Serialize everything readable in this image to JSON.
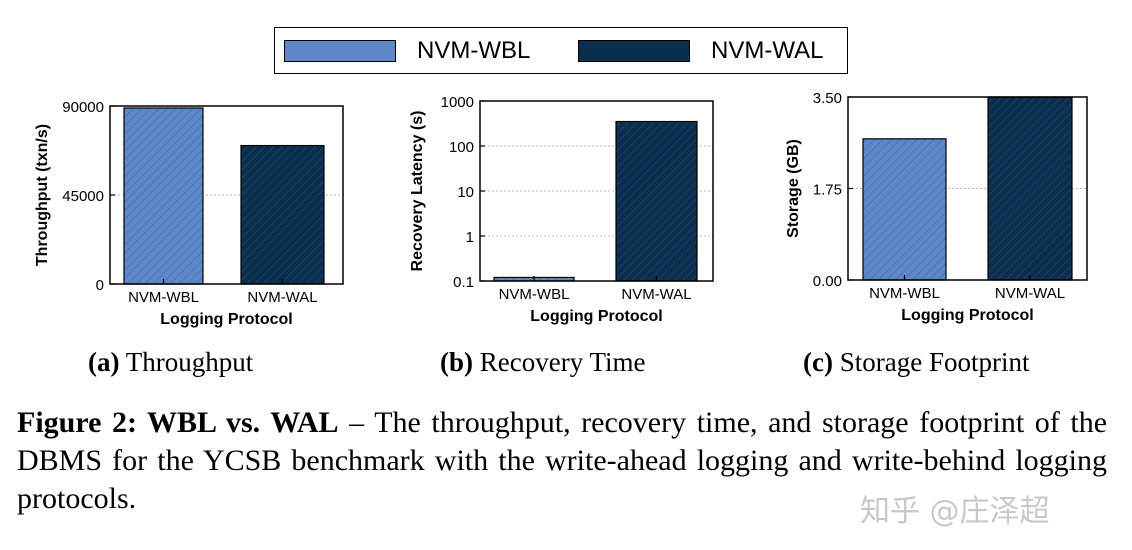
{
  "legend": {
    "items": [
      {
        "label": "NVM-WBL",
        "color": "#5f88c8"
      },
      {
        "label": "NVM-WAL",
        "color": "#0c2e4e"
      }
    ]
  },
  "chart_data": [
    {
      "type": "bar",
      "categories": [
        "NVM-WBL",
        "NVM-WAL"
      ],
      "values": [
        89000,
        70000
      ],
      "colors": [
        "#5f88c8",
        "#0c2e4e"
      ],
      "ylabel": "Throughput (txn/s)",
      "xlabel": "Logging Protocol",
      "yticks": [
        "0",
        "45000",
        "90000"
      ],
      "ytick_values": [
        0,
        45000,
        90000
      ],
      "ylim": [
        0,
        90000
      ],
      "scale": "linear",
      "grid": true
    },
    {
      "type": "bar",
      "categories": [
        "NVM-WBL",
        "NVM-WAL"
      ],
      "values": [
        0.12,
        350
      ],
      "colors": [
        "#5f88c8",
        "#0c2e4e"
      ],
      "ylabel": "Recovery Latency (s)",
      "xlabel": "Logging Protocol",
      "yticks": [
        "0.1",
        "1",
        "10",
        "100",
        "1000"
      ],
      "ytick_values": [
        0.1,
        1,
        10,
        100,
        1000
      ],
      "ylim": [
        0.1,
        1000
      ],
      "scale": "log",
      "grid": true
    },
    {
      "type": "bar",
      "categories": [
        "NVM-WBL",
        "NVM-WAL"
      ],
      "values": [
        2.7,
        3.5
      ],
      "colors": [
        "#5f88c8",
        "#0c2e4e"
      ],
      "ylabel": "Storage (GB)",
      "xlabel": "Logging Protocol",
      "yticks": [
        "0.00",
        "1.75",
        "3.50"
      ],
      "ytick_values": [
        0,
        1.75,
        3.5
      ],
      "ylim": [
        0,
        3.5
      ],
      "scale": "linear",
      "grid": true
    }
  ],
  "captions": [
    {
      "letter": "(a)",
      "text": "Throughput"
    },
    {
      "letter": "(b)",
      "text": "Recovery Time"
    },
    {
      "letter": "(c)",
      "text": "Storage Footprint"
    }
  ],
  "figure_caption": {
    "label": "Figure 2: WBL vs. WAL",
    "text": " – The throughput, recovery time, and storage footprint of the DBMS for the YCSB benchmark with the write-ahead logging and write-behind logging protocols."
  },
  "watermark": "知乎 @庄泽超"
}
